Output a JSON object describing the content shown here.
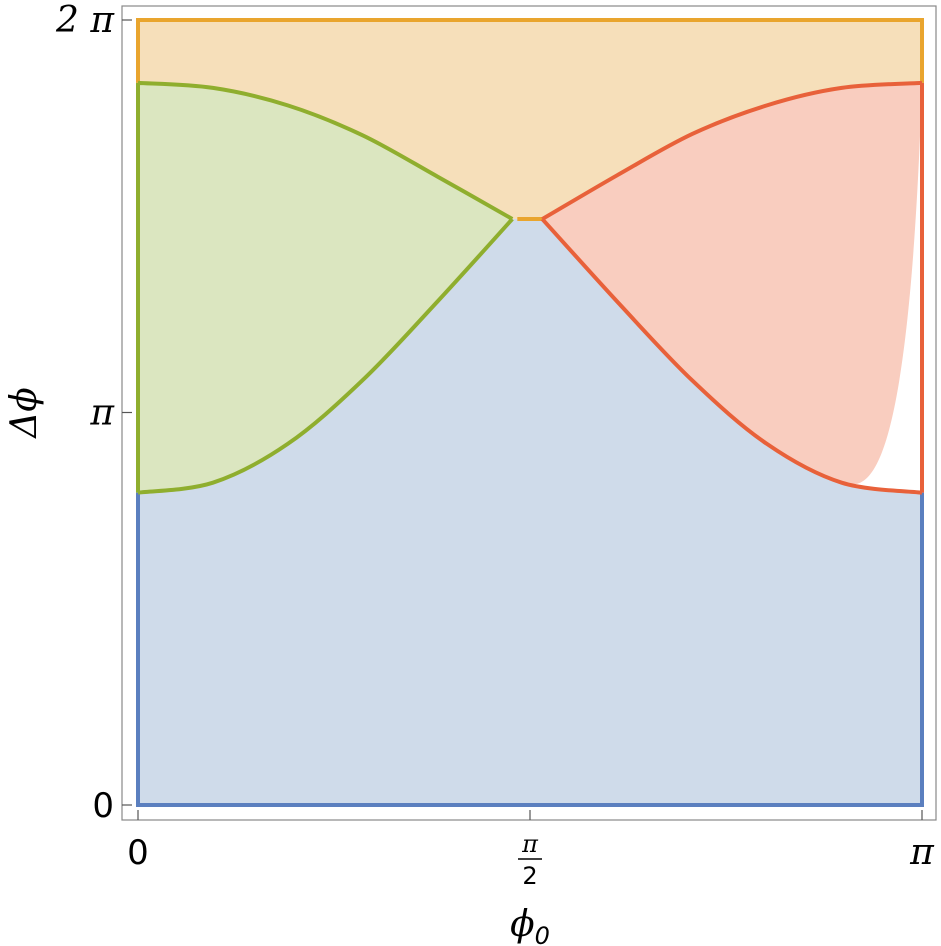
{
  "chart_data": {
    "type": "area",
    "title": "",
    "xlabel": "ϕ",
    "xlabel_sub": "0",
    "ylabel": "Δϕ",
    "xlim": [
      0,
      3.14159
    ],
    "ylim": [
      0,
      6.28318
    ],
    "x_ticks": [
      {
        "value": 0,
        "label": "0"
      },
      {
        "value": 1.5708,
        "label_num": "π",
        "label_den": "2"
      },
      {
        "value": 3.14159,
        "label": "π"
      }
    ],
    "y_ticks": [
      {
        "value": 0,
        "label": "0"
      },
      {
        "value": 3.14159,
        "label": "π"
      },
      {
        "value": 6.28318,
        "label": "2 π"
      }
    ],
    "grid": false,
    "colors": {
      "blue": "#5b7fbf",
      "blue_fill": "#cfdbea",
      "green": "#8fae2e",
      "green_fill": "#dbe6c0",
      "red": "#e8613a",
      "red_fill": "#f9cdbf",
      "orange": "#e9a52e",
      "orange_fill": "#f6dfba",
      "frame": "#888888"
    },
    "boundaries": {
      "green_upper": {
        "x": [
          0.0,
          0.3,
          0.6,
          0.9,
          1.2,
          1.5
        ],
        "y": [
          5.78,
          5.74,
          5.6,
          5.36,
          5.03,
          4.69
        ]
      },
      "green_lower": {
        "x": [
          0.0,
          0.3,
          0.6,
          0.9,
          1.2,
          1.5
        ],
        "y": [
          2.5,
          2.58,
          2.89,
          3.4,
          4.03,
          4.69
        ]
      },
      "flat_top": {
        "x": [
          1.52,
          1.62
        ],
        "y": [
          4.69,
          4.69
        ]
      },
      "red_upper": {
        "x": [
          1.62,
          1.92,
          2.22,
          2.52,
          2.82,
          3.14159
        ],
        "y": [
          4.69,
          5.04,
          5.37,
          5.6,
          5.74,
          5.78
        ]
      },
      "red_lower": {
        "x": [
          1.62,
          1.92,
          2.22,
          2.52,
          2.82,
          3.14159
        ],
        "y": [
          4.69,
          4.03,
          3.4,
          2.89,
          2.58,
          2.5
        ]
      }
    }
  }
}
